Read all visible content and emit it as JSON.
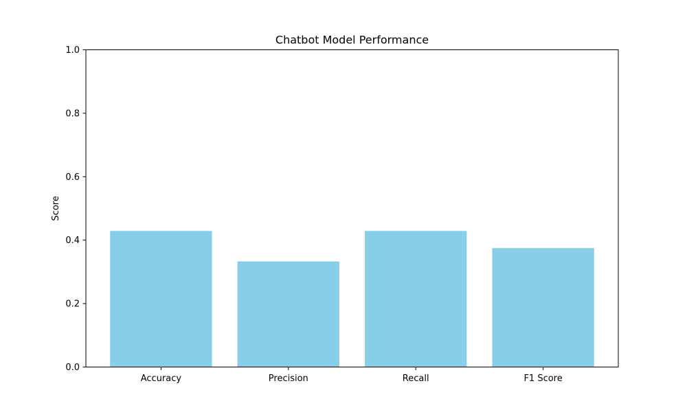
{
  "chart_data": {
    "type": "bar",
    "title": "Chatbot Model Performance",
    "xlabel": "",
    "ylabel": "Score",
    "categories": [
      "Accuracy",
      "Precision",
      "Recall",
      "F1 Score"
    ],
    "values": [
      0.429,
      0.333,
      0.429,
      0.375
    ],
    "ylim": [
      0,
      1.0
    ],
    "yticks": [
      "0.0",
      "0.2",
      "0.4",
      "0.6",
      "0.8",
      "1.0"
    ],
    "bar_color": "#87CEEB",
    "grid": false,
    "legend": "none"
  }
}
